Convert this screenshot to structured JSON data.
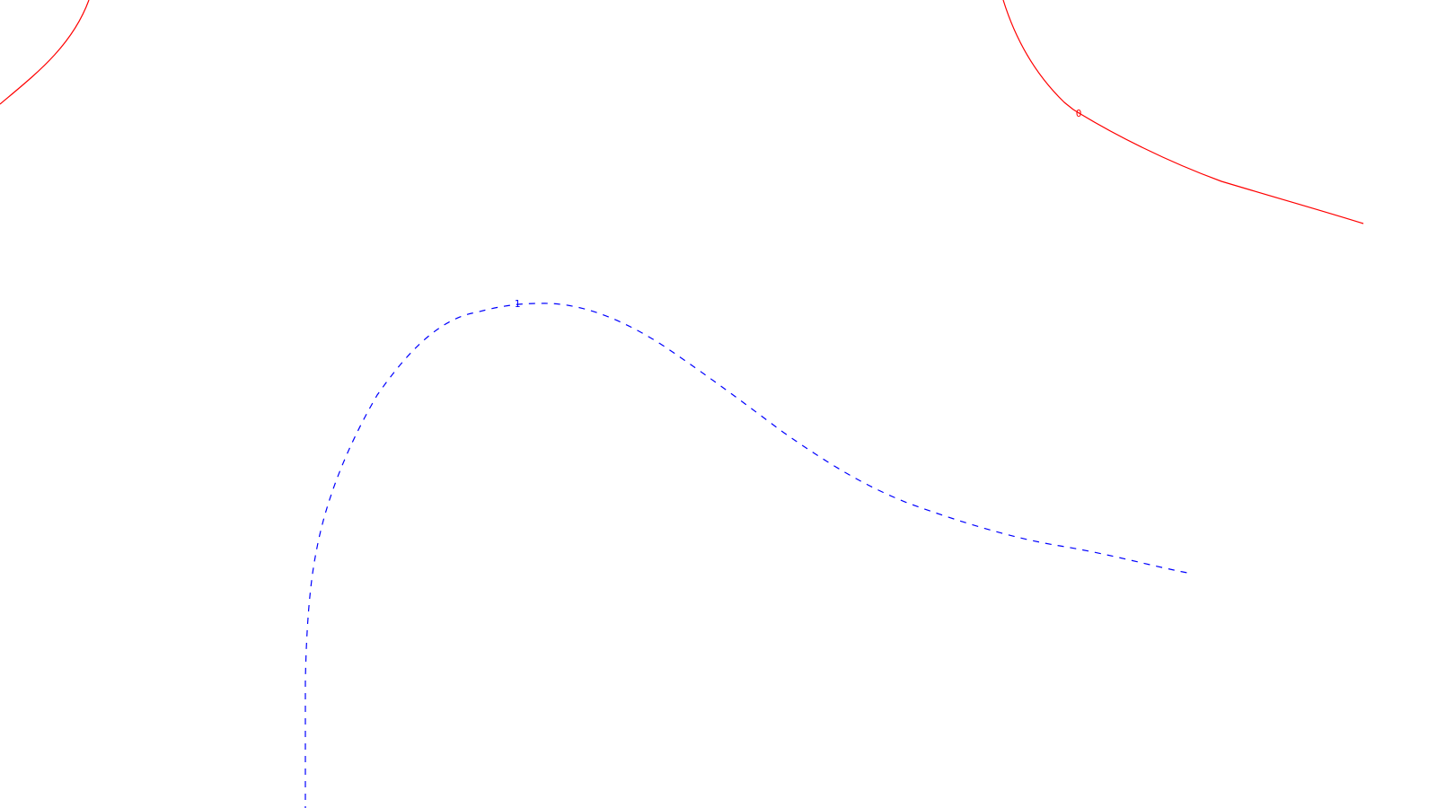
{
  "contours": [
    {
      "label": "0",
      "color": "#ff0000",
      "style": "solid"
    },
    {
      "label": "1",
      "color": "#0000ff",
      "style": "dashed"
    }
  ]
}
